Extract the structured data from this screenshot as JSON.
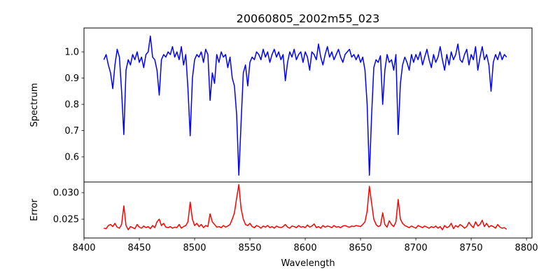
{
  "chart_data": [
    {
      "type": "line",
      "title": "20060805_2002m55_023",
      "xlabel": "",
      "ylabel": "Spectrum",
      "xlim": [
        8400,
        8805
      ],
      "ylim": [
        0.504,
        1.091
      ],
      "yticks": [
        "0.6",
        "0.7",
        "0.8",
        "0.9",
        "1.0"
      ],
      "ytick_values": [
        0.6,
        0.7,
        0.8,
        0.9,
        1.0
      ],
      "grid": false,
      "x_start": 8418,
      "x_step": 2,
      "series": [
        {
          "name": "Spectrum",
          "color": "#0000ff",
          "values": [
            0.97,
            0.99,
            0.95,
            0.92,
            0.86,
            0.95,
            1.01,
            0.98,
            0.85,
            0.685,
            0.93,
            0.97,
            0.95,
            0.99,
            0.97,
            1.0,
            0.96,
            0.98,
            0.94,
            0.99,
            1.0,
            1.06,
            0.98,
            0.97,
            0.93,
            0.835,
            0.97,
            0.99,
            0.98,
            1.0,
            0.99,
            1.02,
            0.98,
            1.0,
            0.97,
            1.02,
            0.95,
            0.99,
            0.86,
            0.68,
            0.9,
            0.97,
            0.99,
            0.98,
            1.0,
            0.96,
            1.01,
            0.99,
            0.815,
            0.92,
            0.88,
            0.99,
            0.96,
            1.0,
            0.98,
            0.99,
            0.94,
            0.98,
            0.9,
            0.87,
            0.76,
            0.53,
            0.73,
            0.92,
            0.95,
            0.87,
            0.96,
            0.98,
            0.97,
            1.0,
            0.99,
            0.97,
            1.01,
            0.98,
            1.0,
            0.96,
            0.99,
            1.01,
            0.98,
            1.0,
            0.97,
            0.99,
            0.89,
            0.96,
            1.0,
            0.98,
            1.01,
            0.97,
            0.99,
            1.0,
            0.96,
            1.0,
            0.98,
            0.93,
            1.0,
            0.99,
            0.97,
            1.03,
            0.98,
            0.95,
            0.99,
            1.02,
            0.98,
            1.0,
            0.97,
            0.99,
            1.01,
            0.98,
            0.96,
            0.99,
            1.0,
            1.01,
            0.98,
            0.99,
            0.97,
            0.99,
            0.96,
            0.98,
            0.93,
            0.8,
            0.53,
            0.76,
            0.94,
            0.97,
            0.96,
            0.985,
            0.8,
            0.93,
            0.99,
            0.96,
            0.97,
            0.93,
            0.99,
            0.685,
            0.88,
            0.95,
            0.98,
            0.96,
            0.93,
            0.99,
            0.96,
            0.99,
            0.97,
            1.0,
            0.95,
            0.98,
            1.01,
            0.97,
            0.94,
            0.99,
            0.96,
            0.98,
            1.02,
            0.97,
            0.93,
            0.99,
            0.95,
            1.0,
            0.97,
            0.99,
            1.03,
            0.97,
            0.96,
            0.99,
            1.01,
            0.95,
            0.99,
            0.97,
            1.02,
            0.93,
            0.98,
            1.02,
            0.97,
            0.99,
            0.95,
            0.85,
            0.96,
            0.99,
            0.97,
            1.0,
            0.97,
            0.99,
            0.98
          ]
        }
      ]
    },
    {
      "type": "line",
      "title": "",
      "xlabel": "Wavelength",
      "ylabel": "Error",
      "xlim": [
        8400,
        8805
      ],
      "ylim": [
        0.02145,
        0.032
      ],
      "xticks": [
        "8400",
        "8450",
        "8500",
        "8550",
        "8600",
        "8650",
        "8700",
        "8750",
        "8800"
      ],
      "xtick_values": [
        8400,
        8450,
        8500,
        8550,
        8600,
        8650,
        8700,
        8750,
        8800
      ],
      "yticks": [
        "0.025",
        "0.030"
      ],
      "ytick_values": [
        0.025,
        0.03
      ],
      "grid": false,
      "x_start": 8418,
      "x_step": 2,
      "series": [
        {
          "name": "Error",
          "color": "#ff0000",
          "values": [
            0.0233,
            0.0232,
            0.0238,
            0.024,
            0.0236,
            0.0242,
            0.0235,
            0.0233,
            0.024,
            0.0275,
            0.0238,
            0.023,
            0.0236,
            0.0234,
            0.0232,
            0.024,
            0.0235,
            0.0233,
            0.0237,
            0.0234,
            0.0236,
            0.0232,
            0.0238,
            0.0234,
            0.0245,
            0.025,
            0.0238,
            0.0242,
            0.0235,
            0.0234,
            0.0236,
            0.0233,
            0.0235,
            0.0234,
            0.024,
            0.0233,
            0.0236,
            0.0238,
            0.0245,
            0.0282,
            0.025,
            0.0238,
            0.0242,
            0.0236,
            0.024,
            0.0234,
            0.0238,
            0.0236,
            0.026,
            0.0245,
            0.024,
            0.0235,
            0.0236,
            0.0234,
            0.0238,
            0.0235,
            0.0237,
            0.024,
            0.025,
            0.0262,
            0.029,
            0.0315,
            0.027,
            0.025,
            0.024,
            0.0238,
            0.0242,
            0.0236,
            0.0234,
            0.0238,
            0.0236,
            0.0233,
            0.0237,
            0.0235,
            0.0238,
            0.0234,
            0.0236,
            0.0233,
            0.0237,
            0.0235,
            0.0234,
            0.0236,
            0.024,
            0.0235,
            0.0233,
            0.0237,
            0.0236,
            0.0234,
            0.0238,
            0.0235,
            0.0236,
            0.0234,
            0.0239,
            0.0235,
            0.0237,
            0.0241,
            0.0234,
            0.0236,
            0.0233,
            0.0238,
            0.0235,
            0.0237,
            0.0236,
            0.0234,
            0.0238,
            0.0235,
            0.0236,
            0.0234,
            0.0237,
            0.0238,
            0.0236,
            0.0235,
            0.0237,
            0.0236,
            0.0238,
            0.0237,
            0.0236,
            0.024,
            0.0245,
            0.0265,
            0.0312,
            0.028,
            0.025,
            0.024,
            0.0236,
            0.0238,
            0.0262,
            0.024,
            0.0235,
            0.0247,
            0.024,
            0.0236,
            0.0245,
            0.0287,
            0.025,
            0.0242,
            0.0238,
            0.0236,
            0.0234,
            0.0237,
            0.0235,
            0.0233,
            0.0238,
            0.0236,
            0.0234,
            0.0237,
            0.0235,
            0.0233,
            0.0236,
            0.0234,
            0.0237,
            0.0233,
            0.0236,
            0.023,
            0.0238,
            0.0234,
            0.0236,
            0.0242,
            0.0232,
            0.0238,
            0.0235,
            0.024,
            0.0237,
            0.0233,
            0.0236,
            0.0244,
            0.0238,
            0.0234,
            0.0245,
            0.0237,
            0.024,
            0.0248,
            0.0236,
            0.0242,
            0.0235,
            0.0238,
            0.0236,
            0.0233,
            0.024,
            0.0235,
            0.0233,
            0.0234,
            0.0231
          ]
        }
      ]
    }
  ]
}
